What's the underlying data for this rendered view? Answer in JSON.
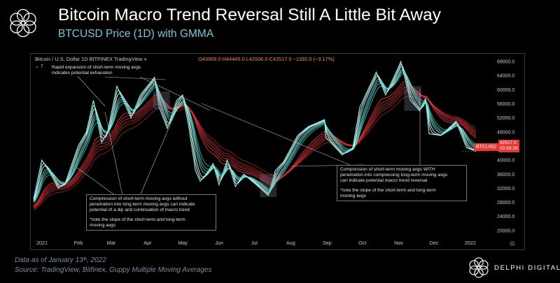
{
  "header": {
    "title": "Bitcoin Macro Trend Reversal Still A Little Bit Away",
    "subtitle": "BTCUSD Price (1D) with GMMA"
  },
  "tv": {
    "symbol_line": "Bitcoin / U.S. Dollar  1D  BITFINEX  TradingView",
    "ohlc": "O43909.0 H44445.0 L42506.0 C42517.0 −1392.0 (−3.17%)",
    "layers": "⌄ 7",
    "price_label": "BTCUSD",
    "last_price": "42517.0",
    "countdown": "03:56:29"
  },
  "notes": {
    "top_left": [
      "Rapid expansion of short-term moving avgs",
      "indicates potential exhaustion"
    ],
    "bottom_left": [
      "Compression of short-term moving avgs without",
      "penetration into long term moving avgs can indicate",
      "potential of a dip and continuation of macro trend",
      "",
      "*note the slope of the short-term and long-term",
      "moving avgs"
    ],
    "right": [
      "Compression of short-term moving avgs WITH",
      "penetration into compressing long-term moving avgs",
      "can indicate potential macro trend reversal",
      "",
      "*note the slope of the short-term and long-term",
      "moving avgs"
    ]
  },
  "footer": {
    "line1": "Data as of January 13ᵗʰ, 2022",
    "line2": "Source: TradingView, Bitfinex, Guppy Multiple Moving Averages",
    "brand": "DELPHI DIGITAL"
  },
  "colors": {
    "short_ma": "#5fe0d6",
    "long_ma": "#e0343c",
    "price_tag": "#e53935",
    "subtitle": "#7fc4dd"
  },
  "chart_data": {
    "type": "line",
    "title": "BTCUSD Price (1D) with GMMA",
    "xlabel": "",
    "ylabel": "",
    "x_ticks": [
      "2021",
      "Feb",
      "Mar",
      "Apr",
      "May",
      "Jun",
      "Jul",
      "Aug",
      "Sep",
      "Oct",
      "Nov",
      "Dec",
      "2022"
    ],
    "y_ticks": [
      "68000.0",
      "64000.0",
      "60000.0",
      "56000.0",
      "52000.0",
      "48000.0",
      "44000.0",
      "40000.0",
      "36000.0",
      "32000.0",
      "28000.0",
      "24000.0",
      "20000.0"
    ],
    "ylim": [
      17000,
      70000
    ],
    "grid": false,
    "series": [
      {
        "values": [
          [
            "2021-01-01",
            29000
          ],
          [
            "2021-01-08",
            40000
          ],
          [
            "2021-01-14",
            37000
          ],
          [
            "2021-01-22",
            32000
          ],
          [
            "2021-01-28",
            33500
          ],
          [
            "2021-02-08",
            44000
          ],
          [
            "2021-02-15",
            48000
          ],
          [
            "2021-02-21",
            57000
          ],
          [
            "2021-02-28",
            45000
          ],
          [
            "2021-03-05",
            48000
          ],
          [
            "2021-03-13",
            61000
          ],
          [
            "2021-03-25",
            52000
          ],
          [
            "2021-04-02",
            58500
          ],
          [
            "2021-04-14",
            63500
          ],
          [
            "2021-04-18",
            55000
          ],
          [
            "2021-04-25",
            49000
          ],
          [
            "2021-05-03",
            57000
          ],
          [
            "2021-05-08",
            58500
          ],
          [
            "2021-05-13",
            50000
          ],
          [
            "2021-05-19",
            37000
          ],
          [
            "2021-05-23",
            34000
          ],
          [
            "2021-05-28",
            36000
          ],
          [
            "2021-06-03",
            39000
          ],
          [
            "2021-06-08",
            33000
          ],
          [
            "2021-06-15",
            40000
          ],
          [
            "2021-06-22",
            32500
          ],
          [
            "2021-06-29",
            36000
          ],
          [
            "2021-07-08",
            33500
          ],
          [
            "2021-07-20",
            30000
          ],
          [
            "2021-07-26",
            37000
          ],
          [
            "2021-08-02",
            39500
          ],
          [
            "2021-08-14",
            47000
          ],
          [
            "2021-08-23",
            49500
          ],
          [
            "2021-09-06",
            51500
          ],
          [
            "2021-09-07",
            46500
          ],
          [
            "2021-09-21",
            41500
          ],
          [
            "2021-09-30",
            43500
          ],
          [
            "2021-10-06",
            55000
          ],
          [
            "2021-10-20",
            65000
          ],
          [
            "2021-10-28",
            58500
          ],
          [
            "2021-11-08",
            66500
          ],
          [
            "2021-11-10",
            68000
          ],
          [
            "2021-11-18",
            57000
          ],
          [
            "2021-11-26",
            54000
          ],
          [
            "2021-12-01",
            57500
          ],
          [
            "2021-12-04",
            47500
          ],
          [
            "2021-12-14",
            47000
          ],
          [
            "2021-12-27",
            51000
          ],
          [
            "2022-01-05",
            43500
          ],
          [
            "2022-01-13",
            42517
          ]
        ]
      }
    ]
  }
}
